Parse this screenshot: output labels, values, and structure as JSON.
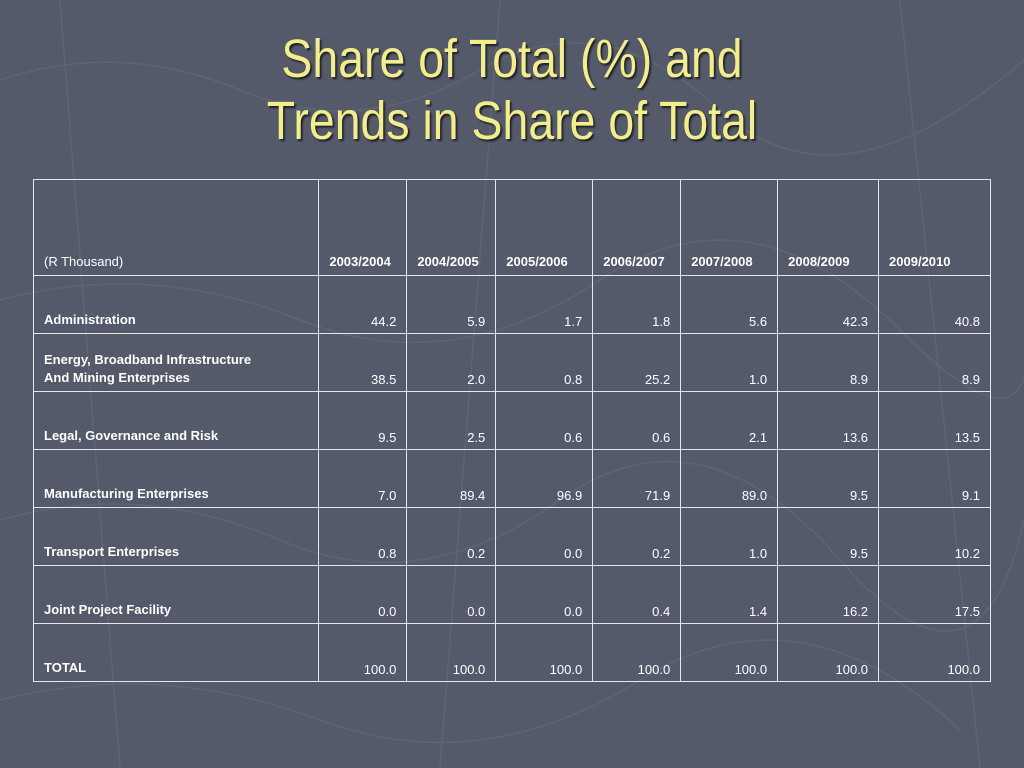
{
  "slide": {
    "title_line1": "Share of Total (%) and",
    "title_line2": "Trends in Share of Total",
    "title_color": "#f2ee8a",
    "background_color": "#555a6b"
  },
  "table": {
    "unit_label": "(R Thousand)",
    "years": [
      "2003/2004",
      "2004/2005",
      "2005/2006",
      "2006/2007",
      "2007/2008",
      "2008/2009",
      "2009/2010"
    ],
    "rows": [
      {
        "label_lines": [
          "Administration"
        ],
        "values": [
          "44.2",
          "5.9",
          "1.7",
          "1.8",
          "5.6",
          "42.3",
          "40.8"
        ]
      },
      {
        "label_lines": [
          "Energy, Broadband Infrastructure",
          "And Mining Enterprises"
        ],
        "values": [
          "38.5",
          "2.0",
          "0.8",
          "25.2",
          "1.0",
          "8.9",
          "8.9"
        ]
      },
      {
        "label_lines": [
          "Legal, Governance and Risk"
        ],
        "values": [
          "9.5",
          "2.5",
          "0.6",
          "0.6",
          "2.1",
          "13.6",
          "13.5"
        ]
      },
      {
        "label_lines": [
          "Manufacturing Enterprises"
        ],
        "values": [
          "7.0",
          "89.4",
          "96.9",
          "71.9",
          "89.0",
          "9.5",
          "9.1"
        ]
      },
      {
        "label_lines": [
          "Transport Enterprises"
        ],
        "values": [
          "0.8",
          "0.2",
          "0.0",
          "0.2",
          "1.0",
          "9.5",
          "10.2"
        ]
      },
      {
        "label_lines": [
          "Joint Project Facility"
        ],
        "values": [
          "0.0",
          "0.0",
          "0.0",
          "0.4",
          "1.4",
          "16.2",
          "17.5"
        ]
      },
      {
        "label_lines": [
          "TOTAL"
        ],
        "values": [
          "100.0",
          "100.0",
          "100.0",
          "100.0",
          "100.0",
          "100.0",
          "100.0"
        ]
      }
    ]
  }
}
